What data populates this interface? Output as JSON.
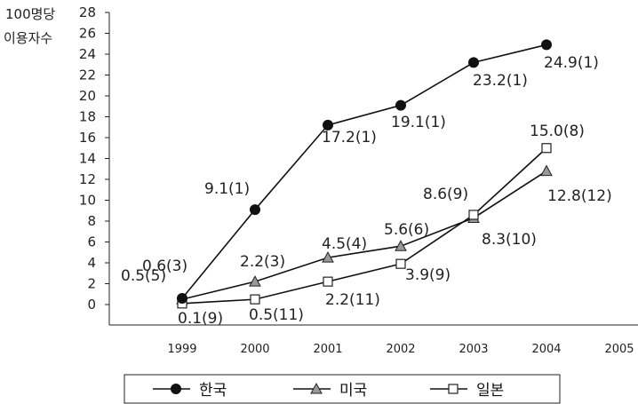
{
  "chart_data": {
    "type": "line",
    "ylabel": [
      "100명당",
      "이용자수"
    ],
    "x": [
      1999,
      2000,
      2001,
      2002,
      2003,
      2004
    ],
    "x_ticks": [
      "1999",
      "2000",
      "2001",
      "2002",
      "2003",
      "2004",
      "2005"
    ],
    "xlim": [
      1999,
      2005
    ],
    "ylim": [
      0,
      28
    ],
    "y_ticks": [
      "0",
      "2",
      "4",
      "6",
      "8",
      "10",
      "12",
      "14",
      "16",
      "18",
      "20",
      "22",
      "24",
      "26",
      "28"
    ],
    "grid": false,
    "legend_position": "bottom",
    "series": [
      {
        "name": "한국",
        "marker": "filled-circle",
        "color": "#111111",
        "values": [
          0.6,
          9.1,
          17.2,
          19.1,
          23.2,
          24.9
        ],
        "labels": [
          "0.6(3)",
          "9.1(1)",
          "17.2(1)",
          "19.1(1)",
          "23.2(1)",
          "24.9(1)"
        ]
      },
      {
        "name": "미국",
        "marker": "triangle",
        "color": "#111111",
        "values": [
          0.5,
          2.2,
          4.5,
          5.6,
          8.3,
          12.8
        ],
        "labels": [
          "0.5(5)",
          "2.2(3)",
          "4.5(4)",
          "5.6(6)",
          "8.3(10)",
          "12.8(12)"
        ]
      },
      {
        "name": "일본",
        "marker": "open-square",
        "color": "#111111",
        "values": [
          0.1,
          0.5,
          2.2,
          3.9,
          8.6,
          15.0
        ],
        "labels": [
          "0.1(9)",
          "0.5(11)",
          "2.2(11)",
          "3.9(9)",
          "8.6(9)",
          "15.0(8)"
        ]
      }
    ]
  }
}
